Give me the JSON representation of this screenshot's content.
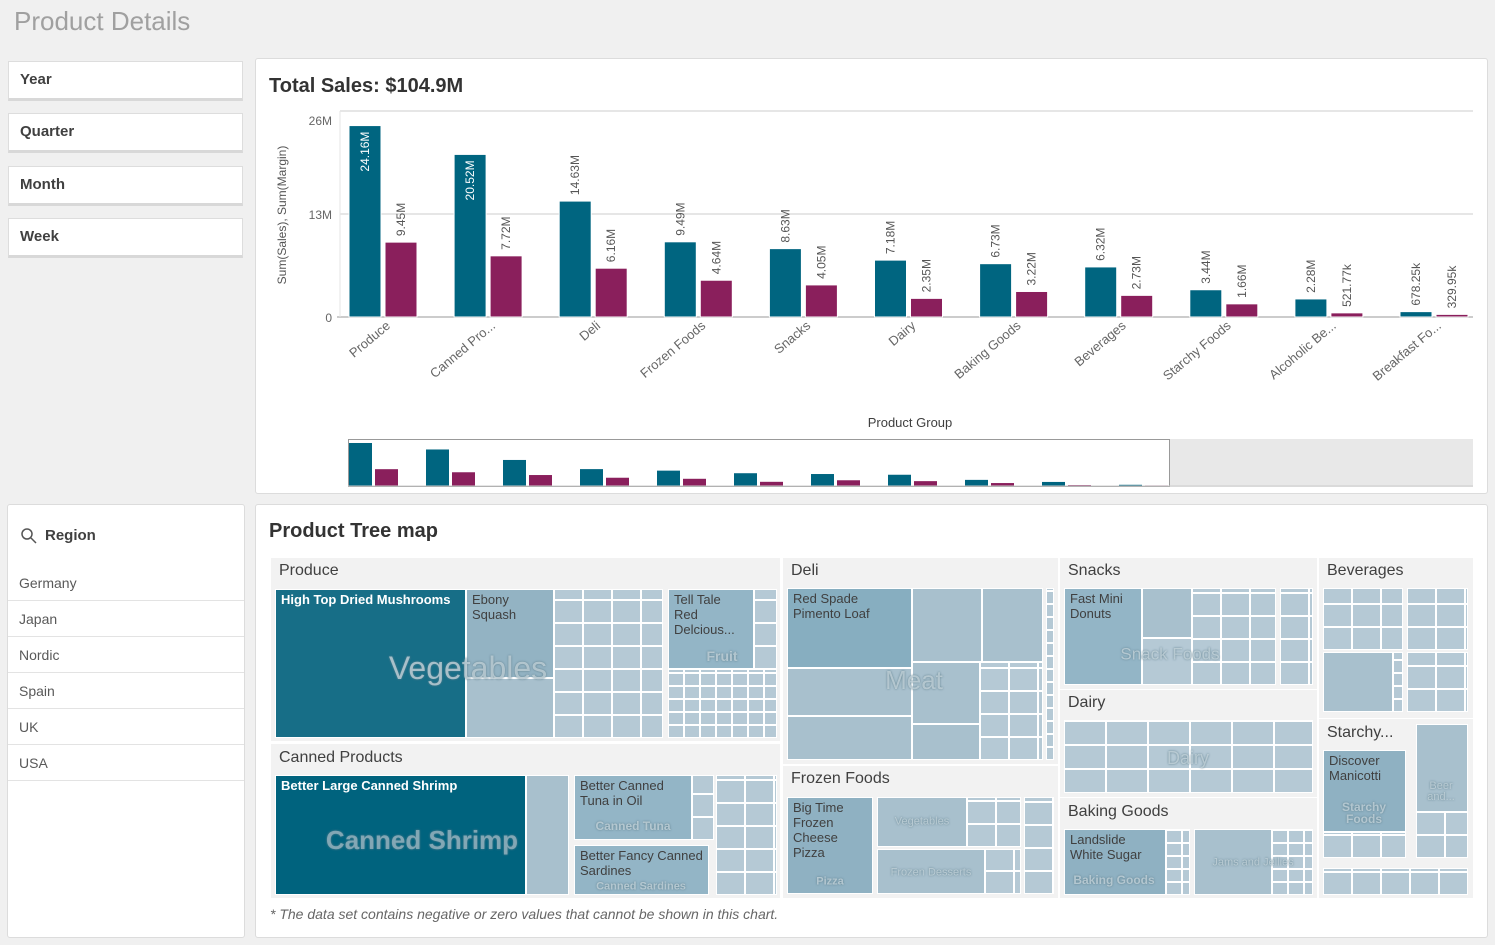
{
  "page": {
    "title": "Product Details"
  },
  "filters": [
    "Year",
    "Quarter",
    "Month",
    "Week"
  ],
  "region": {
    "title": "Region",
    "icon": "search-icon",
    "items": [
      "Germany",
      "Japan",
      "Nordic",
      "Spain",
      "UK",
      "USA"
    ]
  },
  "sales_chart": {
    "title": "Total Sales: $104.9M"
  },
  "chart_data": {
    "type": "bar",
    "xlabel": "Product Group",
    "ylabel": "Sum(Sales), Sum(Margin)",
    "ylim": [
      0,
      26
    ],
    "yticks": [
      "0",
      "13M",
      "26M"
    ],
    "categories": [
      "Produce",
      "Canned Pro...",
      "Deli",
      "Frozen Foods",
      "Snacks",
      "Dairy",
      "Baking Goods",
      "Beverages",
      "Starchy Foods",
      "Alcoholic Be...",
      "Breakfast Fo..."
    ],
    "series": [
      {
        "values": [
          24.16,
          20.52,
          14.63,
          9.49,
          8.63,
          7.18,
          6.73,
          6.32,
          3.44,
          2.28,
          0.67825
        ],
        "labels": [
          "24.16M",
          "20.52M",
          "14.63M",
          "9.49M",
          "8.63M",
          "7.18M",
          "6.73M",
          "6.32M",
          "3.44M",
          "2.28M",
          "678.25k"
        ],
        "color": "#006580"
      },
      {
        "values": [
          9.45,
          7.72,
          6.16,
          4.64,
          4.05,
          2.35,
          3.22,
          2.73,
          1.66,
          0.52177,
          0.32995
        ],
        "labels": [
          "9.45M",
          "7.72M",
          "6.16M",
          "4.64M",
          "4.05M",
          "2.35M",
          "3.22M",
          "2.73M",
          "1.66M",
          "521.77k",
          "329.95k"
        ],
        "color": "#8a1f5c"
      }
    ],
    "grid": true
  },
  "treemap": {
    "title": "Product Tree map",
    "footnote": "* The data set contains negative or zero values that cannot be shown in this chart.",
    "groups": {
      "produce": {
        "label": "Produce",
        "tiles": [
          "High Top Dried Mushrooms",
          "Ebony Squash",
          "Tell Tale Red Delcious..."
        ],
        "subs": [
          "Vegetables",
          "Fruit"
        ]
      },
      "canned": {
        "label": "Canned Products",
        "tiles": [
          "Better Large Canned Shrimp",
          "Better Canned Tuna in Oil",
          "Better Fancy Canned Sardines"
        ],
        "subs": [
          "Canned Shrimp",
          "Canned Tuna",
          "Canned Sardines"
        ]
      },
      "deli": {
        "label": "Deli",
        "tiles": [
          "Red Spade Pimento Loaf"
        ],
        "subs": [
          "Meat"
        ]
      },
      "frozen": {
        "label": "Frozen Foods",
        "tiles": [
          "Big Time Frozen Cheese Pizza"
        ],
        "subs": [
          "Pizza",
          "Vegetables",
          "Frozen Desserts"
        ]
      },
      "snacks": {
        "label": "Snacks",
        "tiles": [
          "Fast Mini Donuts"
        ],
        "subs": [
          "Snack Foods"
        ]
      },
      "dairy": {
        "label": "Dairy",
        "subs": [
          "Dairy"
        ]
      },
      "baking": {
        "label": "Baking Goods",
        "tiles": [
          "Landslide White Sugar"
        ],
        "subs": [
          "Baking Goods",
          "Jams and Jellies"
        ]
      },
      "beverages": {
        "label": "Beverages"
      },
      "starchy": {
        "label": "Starchy...",
        "tiles": [
          "Discover Manicotti"
        ],
        "subs": [
          "Starchy Foods",
          "Beer and..."
        ]
      }
    }
  }
}
